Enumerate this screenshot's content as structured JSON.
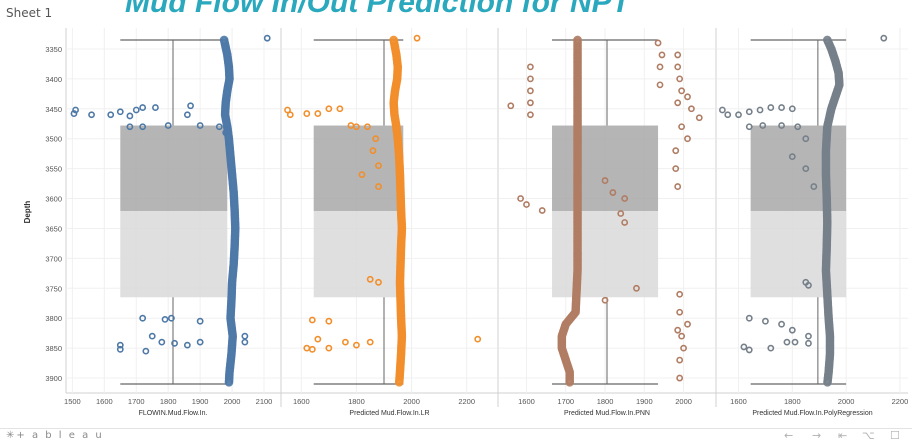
{
  "sheet_label": "Sheet 1",
  "title": "Mud Flow In/Out Prediction for NPT",
  "footer": {
    "brand": "+ a b l e a u",
    "brand_icon": "tableau-logo-icon",
    "nav_icons": [
      "back-icon",
      "forward-icon",
      "reset-icon",
      "share-icon",
      "comment-icon"
    ],
    "nav_glyphs": [
      "←",
      "→",
      "⇤",
      "⌥",
      "☐"
    ]
  },
  "chart_data": {
    "type": "scatter",
    "ylabel": "Depth",
    "ylim": [
      3315,
      3925
    ],
    "y_reversed": true,
    "y_ticks": [
      3350,
      3400,
      3450,
      3500,
      3550,
      3600,
      3650,
      3700,
      3750,
      3800,
      3850,
      3900
    ],
    "boxplot": {
      "whisker_low": 3335,
      "q1": 3478,
      "median": 3621,
      "q3": 3765,
      "whisker_high": 3910,
      "upper_fill": "#a8a8a8",
      "lower_fill": "#d9d9d9"
    },
    "panels": [
      {
        "xlabel": "FLOWIN.Mud.Flow.In.",
        "xlim": [
          1480,
          2150
        ],
        "x_ticks": [
          1500,
          1600,
          1700,
          1800,
          1900,
          2000,
          2100
        ],
        "color": "#4e79a7",
        "box_x": [
          1650,
          1985
        ],
        "whisker_x": 1815,
        "spine": [
          [
            3335,
            1975
          ],
          [
            3360,
            1985
          ],
          [
            3380,
            1990
          ],
          [
            3400,
            1992
          ],
          [
            3420,
            1985
          ],
          [
            3440,
            1980
          ],
          [
            3460,
            1978
          ],
          [
            3480,
            1985
          ],
          [
            3500,
            1990
          ],
          [
            3530,
            1995
          ],
          [
            3560,
            2000
          ],
          [
            3590,
            2005
          ],
          [
            3620,
            2008
          ],
          [
            3650,
            2010
          ],
          [
            3680,
            2008
          ],
          [
            3710,
            2005
          ],
          [
            3740,
            2000
          ],
          [
            3770,
            1998
          ],
          [
            3800,
            1995
          ],
          [
            3830,
            2002
          ],
          [
            3860,
            1998
          ],
          [
            3890,
            1992
          ],
          [
            3910,
            1990
          ]
        ],
        "outliers": [
          [
            2110,
            3332
          ],
          [
            1510,
            3452
          ],
          [
            1505,
            3458
          ],
          [
            1560,
            3460
          ],
          [
            1620,
            3460
          ],
          [
            1650,
            3455
          ],
          [
            1680,
            3462
          ],
          [
            1700,
            3452
          ],
          [
            1720,
            3448
          ],
          [
            1760,
            3448
          ],
          [
            1680,
            3480
          ],
          [
            1720,
            3480
          ],
          [
            1800,
            3478
          ],
          [
            1870,
            3445
          ],
          [
            1900,
            3478
          ],
          [
            1960,
            3480
          ],
          [
            1860,
            3460
          ],
          [
            1980,
            3490
          ],
          [
            1720,
            3800
          ],
          [
            1790,
            3802
          ],
          [
            1810,
            3800
          ],
          [
            1900,
            3805
          ],
          [
            1650,
            3845
          ],
          [
            1650,
            3852
          ],
          [
            1730,
            3855
          ],
          [
            1780,
            3840
          ],
          [
            1820,
            3842
          ],
          [
            1860,
            3845
          ],
          [
            1900,
            3840
          ],
          [
            1750,
            3830
          ],
          [
            2040,
            3830
          ],
          [
            2040,
            3840
          ]
        ]
      },
      {
        "xlabel": "Predicted Mud.Flow.In.LR",
        "xlim": [
          1530,
          2310
        ],
        "x_ticks": [
          1600,
          1800,
          2000,
          2200
        ],
        "color": "#f28e2b",
        "box_x": [
          1645,
          1970
        ],
        "whisker_x": 1900,
        "spine": [
          [
            3335,
            1935
          ],
          [
            3360,
            1945
          ],
          [
            3380,
            1950
          ],
          [
            3400,
            1948
          ],
          [
            3420,
            1940
          ],
          [
            3440,
            1935
          ],
          [
            3460,
            1938
          ],
          [
            3480,
            1945
          ],
          [
            3500,
            1950
          ],
          [
            3530,
            1955
          ],
          [
            3560,
            1958
          ],
          [
            3590,
            1960
          ],
          [
            3620,
            1962
          ],
          [
            3650,
            1965
          ],
          [
            3680,
            1962
          ],
          [
            3710,
            1960
          ],
          [
            3740,
            1958
          ],
          [
            3770,
            1960
          ],
          [
            3800,
            1962
          ],
          [
            3830,
            1965
          ],
          [
            3860,
            1962
          ],
          [
            3890,
            1958
          ],
          [
            3910,
            1955
          ]
        ],
        "outliers": [
          [
            2020,
            3332
          ],
          [
            1550,
            3452
          ],
          [
            1560,
            3460
          ],
          [
            1620,
            3458
          ],
          [
            1660,
            3458
          ],
          [
            1700,
            3450
          ],
          [
            1740,
            3450
          ],
          [
            1780,
            3478
          ],
          [
            1800,
            3480
          ],
          [
            1840,
            3480
          ],
          [
            1870,
            3500
          ],
          [
            1860,
            3520
          ],
          [
            1880,
            3545
          ],
          [
            1820,
            3560
          ],
          [
            1880,
            3580
          ],
          [
            1850,
            3735
          ],
          [
            1880,
            3740
          ],
          [
            1640,
            3803
          ],
          [
            1700,
            3805
          ],
          [
            1660,
            3835
          ],
          [
            1620,
            3850
          ],
          [
            1640,
            3852
          ],
          [
            1700,
            3850
          ],
          [
            1760,
            3840
          ],
          [
            1800,
            3845
          ],
          [
            1850,
            3840
          ],
          [
            2240,
            3835
          ]
        ]
      },
      {
        "xlabel": "Predicted Mud.Flow.In.PNN",
        "xlim": [
          1530,
          2080
        ],
        "x_ticks": [
          1600,
          1700,
          1800,
          1900,
          2000
        ],
        "color": "#b07c63",
        "box_x": [
          1665,
          1935
        ],
        "whisker_x": 1805,
        "spine": [
          [
            3335,
            1730
          ],
          [
            3400,
            1730
          ],
          [
            3480,
            1730
          ],
          [
            3560,
            1730
          ],
          [
            3640,
            1730
          ],
          [
            3720,
            1730
          ],
          [
            3790,
            1725
          ],
          [
            3810,
            1700
          ],
          [
            3830,
            1690
          ],
          [
            3850,
            1690
          ],
          [
            3870,
            1700
          ],
          [
            3890,
            1710
          ],
          [
            3910,
            1710
          ]
        ],
        "outliers": [
          [
            1935,
            3340
          ],
          [
            1945,
            3360
          ],
          [
            1940,
            3380
          ],
          [
            1985,
            3360
          ],
          [
            1985,
            3380
          ],
          [
            1940,
            3410
          ],
          [
            1610,
            3380
          ],
          [
            1610,
            3400
          ],
          [
            1610,
            3420
          ],
          [
            1610,
            3440
          ],
          [
            1610,
            3460
          ],
          [
            1560,
            3445
          ],
          [
            1990,
            3400
          ],
          [
            1995,
            3420
          ],
          [
            2010,
            3430
          ],
          [
            1985,
            3440
          ],
          [
            2020,
            3450
          ],
          [
            2040,
            3465
          ],
          [
            1995,
            3480
          ],
          [
            2010,
            3500
          ],
          [
            1980,
            3520
          ],
          [
            1980,
            3550
          ],
          [
            1985,
            3580
          ],
          [
            1585,
            3600
          ],
          [
            1600,
            3610
          ],
          [
            1640,
            3620
          ],
          [
            1800,
            3570
          ],
          [
            1820,
            3590
          ],
          [
            1850,
            3600
          ],
          [
            1840,
            3625
          ],
          [
            1850,
            3640
          ],
          [
            1880,
            3750
          ],
          [
            1990,
            3760
          ],
          [
            1990,
            3790
          ],
          [
            1985,
            3820
          ],
          [
            1995,
            3830
          ],
          [
            2000,
            3850
          ],
          [
            1990,
            3870
          ],
          [
            1990,
            3900
          ],
          [
            1800,
            3770
          ],
          [
            2010,
            3810
          ]
        ]
      },
      {
        "xlabel": "Predicted Mud.Flow.In.PolyRegression",
        "xlim": [
          1520,
          2230
        ],
        "x_ticks": [
          1600,
          1800,
          2000,
          2200
        ],
        "color": "#76808a",
        "box_x": [
          1645,
          2000
        ],
        "whisker_x": 1895,
        "spine": [
          [
            3335,
            1930
          ],
          [
            3350,
            1945
          ],
          [
            3370,
            1960
          ],
          [
            3390,
            1972
          ],
          [
            3410,
            1975
          ],
          [
            3430,
            1960
          ],
          [
            3450,
            1945
          ],
          [
            3480,
            1930
          ],
          [
            3520,
            1925
          ],
          [
            3560,
            1925
          ],
          [
            3600,
            1928
          ],
          [
            3640,
            1930
          ],
          [
            3680,
            1928
          ],
          [
            3720,
            1925
          ],
          [
            3760,
            1930
          ],
          [
            3800,
            1935
          ],
          [
            3830,
            1940
          ],
          [
            3860,
            1940
          ],
          [
            3890,
            1935
          ],
          [
            3910,
            1930
          ]
        ],
        "outliers": [
          [
            2140,
            3332
          ],
          [
            1540,
            3452
          ],
          [
            1560,
            3460
          ],
          [
            1600,
            3460
          ],
          [
            1640,
            3455
          ],
          [
            1680,
            3452
          ],
          [
            1720,
            3448
          ],
          [
            1760,
            3448
          ],
          [
            1800,
            3450
          ],
          [
            1640,
            3480
          ],
          [
            1690,
            3478
          ],
          [
            1760,
            3478
          ],
          [
            1820,
            3480
          ],
          [
            1850,
            3500
          ],
          [
            1800,
            3530
          ],
          [
            1850,
            3550
          ],
          [
            1880,
            3580
          ],
          [
            1850,
            3740
          ],
          [
            1860,
            3745
          ],
          [
            1640,
            3800
          ],
          [
            1700,
            3805
          ],
          [
            1760,
            3810
          ],
          [
            1800,
            3820
          ],
          [
            1620,
            3848
          ],
          [
            1640,
            3853
          ],
          [
            1720,
            3850
          ],
          [
            1780,
            3840
          ],
          [
            1810,
            3840
          ],
          [
            1860,
            3842
          ],
          [
            1860,
            3830
          ]
        ]
      }
    ]
  }
}
